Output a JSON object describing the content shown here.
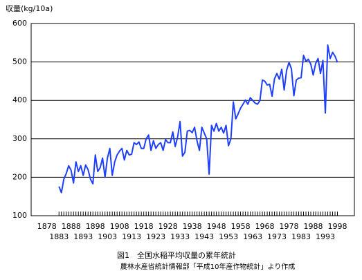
{
  "chart_data": {
    "type": "line",
    "y_label": "収量(kg/10a)",
    "title": "図1　全国水稲平均収量の累年統計",
    "subtitle": "農林水産省統計情報部「平成10年産作物統計」より作成",
    "x": [
      1883,
      1884,
      1885,
      1886,
      1887,
      1888,
      1889,
      1890,
      1891,
      1892,
      1893,
      1894,
      1895,
      1896,
      1897,
      1898,
      1899,
      1900,
      1901,
      1902,
      1903,
      1904,
      1905,
      1906,
      1907,
      1908,
      1909,
      1910,
      1911,
      1912,
      1913,
      1914,
      1915,
      1916,
      1917,
      1918,
      1919,
      1920,
      1921,
      1922,
      1923,
      1924,
      1925,
      1926,
      1927,
      1928,
      1929,
      1930,
      1931,
      1932,
      1933,
      1934,
      1935,
      1936,
      1937,
      1938,
      1939,
      1940,
      1941,
      1942,
      1943,
      1944,
      1945,
      1946,
      1947,
      1948,
      1949,
      1950,
      1951,
      1952,
      1953,
      1954,
      1955,
      1956,
      1957,
      1958,
      1959,
      1960,
      1961,
      1962,
      1963,
      1964,
      1965,
      1966,
      1967,
      1968,
      1969,
      1970,
      1971,
      1972,
      1973,
      1974,
      1975,
      1976,
      1977,
      1978,
      1979,
      1980,
      1981,
      1982,
      1983,
      1984,
      1985,
      1986,
      1987,
      1988,
      1989,
      1990,
      1991,
      1992,
      1993,
      1994,
      1995,
      1996,
      1997,
      1998
    ],
    "series": [
      {
        "name": "収量",
        "color": "#1f3fff",
        "values": [
          176,
          160,
          195,
          210,
          230,
          218,
          185,
          240,
          215,
          230,
          205,
          232,
          220,
          195,
          183,
          258,
          215,
          225,
          250,
          200,
          250,
          275,
          205,
          240,
          258,
          268,
          275,
          245,
          270,
          258,
          260,
          290,
          285,
          292,
          275,
          275,
          300,
          310,
          270,
          295,
          275,
          285,
          290,
          270,
          298,
          290,
          290,
          318,
          280,
          305,
          345,
          255,
          265,
          320,
          322,
          316,
          330,
          295,
          270,
          330,
          315,
          300,
          208,
          335,
          320,
          340,
          320,
          330,
          315,
          335,
          282,
          300,
          396,
          352,
          365,
          380,
          390,
          401,
          390,
          407,
          400,
          393,
          390,
          400,
          453,
          450,
          440,
          442,
          411,
          456,
          470,
          455,
          481,
          427,
          478,
          499,
          482,
          412,
          453,
          458,
          459,
          517,
          502,
          507,
          494,
          466,
          496,
          509,
          470,
          504,
          367,
          544,
          509,
          525,
          515,
          499
        ]
      }
    ],
    "xlim": [
      1871.5,
      2005
    ],
    "xticks": [
      1878,
      1883,
      1888,
      1893,
      1898,
      1903,
      1908,
      1913,
      1918,
      1923,
      1928,
      1933,
      1938,
      1943,
      1948,
      1953,
      1958,
      1963,
      1968,
      1973,
      1978,
      1983,
      1988,
      1993,
      1998
    ],
    "ylim": [
      100,
      600
    ],
    "yticks": [
      100,
      200,
      300,
      400,
      500,
      600
    ],
    "grid": true
  }
}
